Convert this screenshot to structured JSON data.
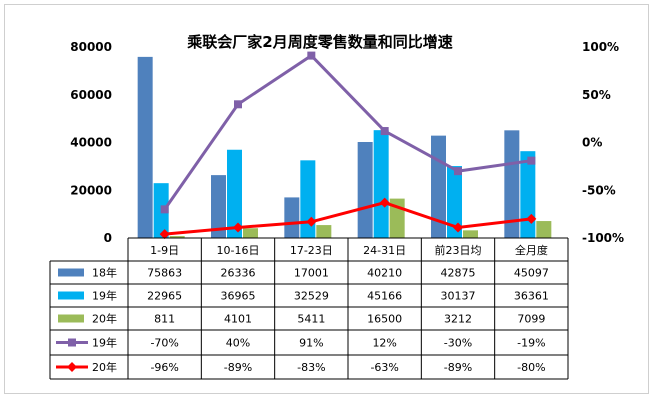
{
  "chart_data": {
    "type": "bar",
    "title": "乘联会厂家2月周度零售数量和同比增速",
    "categories": [
      "1-9日",
      "10-16日",
      "17-23日",
      "24-31日",
      "前23日均",
      "全月度"
    ],
    "series": [
      {
        "name": "18年",
        "kind": "bar",
        "axis": "left",
        "color": "#4f81bd",
        "values": [
          75863,
          26336,
          17001,
          40210,
          42875,
          45097
        ]
      },
      {
        "name": "19年",
        "kind": "bar",
        "axis": "left",
        "color": "#00b0f0",
        "values": [
          22965,
          36965,
          32529,
          45166,
          30137,
          36361
        ]
      },
      {
        "name": "20年",
        "kind": "bar",
        "axis": "left",
        "color": "#9bbb59",
        "values": [
          811,
          4101,
          5411,
          16500,
          3212,
          7099
        ]
      },
      {
        "name": "19年",
        "kind": "line",
        "axis": "right",
        "color": "#7f60a8",
        "marker": "square",
        "values": [
          -70,
          40,
          91,
          12,
          -30,
          -19
        ],
        "labels": [
          "-70%",
          "40%",
          "91%",
          "12%",
          "-30%",
          "-19%"
        ]
      },
      {
        "name": "20年",
        "kind": "line",
        "axis": "right",
        "color": "#ff0000",
        "marker": "diamond",
        "values": [
          -96,
          -89,
          -83,
          -63,
          -89,
          -80
        ],
        "labels": [
          "-96%",
          "-89%",
          "-83%",
          "-63%",
          "-89%",
          "-80%"
        ]
      }
    ],
    "y_left": {
      "min": 0,
      "max": 80000,
      "ticks": [
        0,
        20000,
        40000,
        60000,
        80000
      ],
      "tick_labels": [
        "0",
        "20000",
        "40000",
        "60000",
        "80000"
      ]
    },
    "y_right": {
      "min": -100,
      "max": 100,
      "ticks": [
        -100,
        -50,
        0,
        50,
        100
      ],
      "tick_labels": [
        "-100%",
        "-50%",
        "0%",
        "50%",
        "100%"
      ]
    },
    "grid": false,
    "legend": "data-table"
  }
}
